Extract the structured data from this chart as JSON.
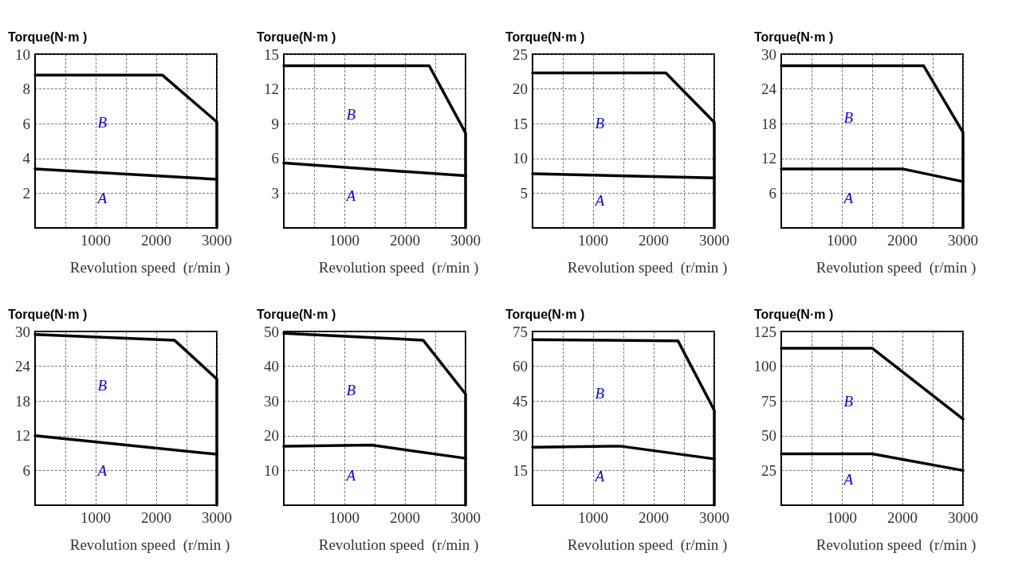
{
  "chart_data": [
    {
      "type": "line",
      "ylabel": "Torque(N·m )",
      "xlabel": "Revolution speed  (r/min )",
      "xlim": [
        0,
        3000
      ],
      "xticks": [
        {
          "value": 500,
          "label": null
        },
        1000,
        {
          "value": 1500,
          "label": null
        },
        2000,
        {
          "value": 2500,
          "label": null
        },
        3000
      ],
      "ylim": [
        0,
        10
      ],
      "yticks": [
        2,
        4,
        6,
        8,
        10
      ],
      "grid": true,
      "marker": "none",
      "line_style": "solid",
      "series": [
        {
          "color": "#000000",
          "x": [
            0,
            2100,
            3000,
            3000
          ],
          "values": [
            8.8,
            8.8,
            6.1,
            0
          ]
        },
        {
          "color": "#000000",
          "x": [
            0,
            3000
          ],
          "values": [
            3.4,
            2.8
          ]
        }
      ],
      "annotations": [
        "B",
        "A"
      ]
    },
    {
      "type": "line",
      "ylabel": "Torque(N·m )",
      "xlabel": "Revolution speed  (r/min )",
      "xlim": [
        0,
        3000
      ],
      "xticks": [
        {
          "value": 500,
          "label": null
        },
        1000,
        {
          "value": 1500,
          "label": null
        },
        2000,
        {
          "value": 2500,
          "label": null
        },
        3000
      ],
      "ylim": [
        0,
        15
      ],
      "yticks": [
        3,
        6,
        9,
        12,
        15
      ],
      "grid": true,
      "marker": "none",
      "line_style": "solid",
      "series": [
        {
          "color": "#000000",
          "x": [
            0,
            2400,
            3000,
            3000
          ],
          "values": [
            14,
            14,
            8.2,
            0
          ]
        },
        {
          "color": "#000000",
          "x": [
            0,
            3000
          ],
          "values": [
            5.6,
            4.5
          ]
        }
      ],
      "annotations": [
        "B",
        "A"
      ]
    },
    {
      "type": "line",
      "ylabel": "Torque(N·m )",
      "xlabel": "Revolution speed  (r/min )",
      "xlim": [
        0,
        3000
      ],
      "xticks": [
        {
          "value": 500,
          "label": null
        },
        1000,
        {
          "value": 1500,
          "label": null
        },
        2000,
        {
          "value": 2500,
          "label": null
        },
        3000
      ],
      "ylim": [
        0,
        25
      ],
      "yticks": [
        5,
        10,
        15,
        20,
        25
      ],
      "grid": true,
      "marker": "none",
      "line_style": "solid",
      "series": [
        {
          "color": "#000000",
          "x": [
            0,
            2200,
            3000,
            3000
          ],
          "values": [
            22.3,
            22.3,
            15.2,
            0
          ]
        },
        {
          "color": "#000000",
          "x": [
            0,
            3000
          ],
          "values": [
            7.8,
            7.2
          ]
        }
      ],
      "annotations": [
        "B",
        "A"
      ]
    },
    {
      "type": "line",
      "ylabel": "Torque(N·m )",
      "xlabel": "Revolution speed  (r/min )",
      "xlim": [
        0,
        3000
      ],
      "xticks": [
        {
          "value": 500,
          "label": null
        },
        1000,
        {
          "value": 1500,
          "label": null
        },
        2000,
        {
          "value": 2500,
          "label": null
        },
        3000
      ],
      "ylim": [
        0,
        30
      ],
      "yticks": [
        6,
        12,
        18,
        24,
        30
      ],
      "grid": true,
      "marker": "none",
      "line_style": "solid",
      "series": [
        {
          "color": "#000000",
          "x": [
            0,
            2350,
            3000,
            3000
          ],
          "values": [
            28,
            28,
            16.5,
            0
          ]
        },
        {
          "color": "#000000",
          "x": [
            0,
            2000,
            3000
          ],
          "values": [
            10.2,
            10.2,
            8
          ]
        }
      ],
      "annotations": [
        "B",
        "A"
      ]
    },
    {
      "type": "line",
      "ylabel": "Torque(N·m )",
      "xlabel": "Revolution speed  (r/min )",
      "xlim": [
        0,
        3000
      ],
      "xticks": [
        {
          "value": 500,
          "label": null
        },
        1000,
        {
          "value": 1500,
          "label": null
        },
        2000,
        {
          "value": 2500,
          "label": null
        },
        3000
      ],
      "ylim": [
        0,
        30
      ],
      "yticks": [
        6,
        12,
        18,
        24,
        30
      ],
      "grid": true,
      "marker": "none",
      "line_style": "solid",
      "series": [
        {
          "color": "#000000",
          "x": [
            0,
            2300,
            3000,
            3000
          ],
          "values": [
            29.5,
            28.5,
            21.8,
            0
          ]
        },
        {
          "color": "#000000",
          "x": [
            0,
            3000
          ],
          "values": [
            12,
            8.8
          ]
        }
      ],
      "annotations": [
        "B",
        "A"
      ]
    },
    {
      "type": "line",
      "ylabel": "Torque(N·m )",
      "xlabel": "Revolution speed  (r/min )",
      "xlim": [
        0,
        3000
      ],
      "xticks": [
        {
          "value": 500,
          "label": null
        },
        1000,
        {
          "value": 1500,
          "label": null
        },
        2000,
        {
          "value": 2500,
          "label": null
        },
        3000
      ],
      "ylim": [
        0,
        50
      ],
      "yticks": [
        10,
        20,
        30,
        40,
        50
      ],
      "grid": true,
      "marker": "none",
      "line_style": "solid",
      "series": [
        {
          "color": "#000000",
          "x": [
            0,
            2300,
            3000,
            3000
          ],
          "values": [
            49.5,
            47.5,
            32,
            0
          ]
        },
        {
          "color": "#000000",
          "x": [
            0,
            1450,
            3000
          ],
          "values": [
            17,
            17.3,
            13.5
          ]
        }
      ],
      "annotations": [
        "B",
        "A"
      ]
    },
    {
      "type": "line",
      "ylabel": "Torque(N·m )",
      "xlabel": "Revolution speed  (r/min )",
      "xlim": [
        0,
        3000
      ],
      "xticks": [
        {
          "value": 500,
          "label": null
        },
        1000,
        {
          "value": 1500,
          "label": null
        },
        2000,
        {
          "value": 2500,
          "label": null
        },
        3000
      ],
      "ylim": [
        0,
        75
      ],
      "yticks": [
        15,
        30,
        45,
        60,
        75
      ],
      "grid": true,
      "marker": "none",
      "line_style": "solid",
      "series": [
        {
          "color": "#000000",
          "x": [
            0,
            2400,
            3000,
            3000
          ],
          "values": [
            71.5,
            71,
            41,
            0
          ]
        },
        {
          "color": "#000000",
          "x": [
            0,
            1450,
            3000
          ],
          "values": [
            25,
            25.5,
            20
          ]
        }
      ],
      "annotations": [
        "B",
        "A"
      ]
    },
    {
      "type": "line",
      "ylabel": "Torque(N·m )",
      "xlabel": "Revolution speed  (r/min )",
      "xlim": [
        0,
        3000
      ],
      "xticks": [
        {
          "value": 500,
          "label": null
        },
        1000,
        {
          "value": 1500,
          "label": null
        },
        2000,
        {
          "value": 2500,
          "label": null
        },
        3000
      ],
      "ylim": [
        0,
        125
      ],
      "yticks": [
        25,
        50,
        75,
        100,
        125
      ],
      "grid": true,
      "marker": "none",
      "line_style": "solid",
      "series": [
        {
          "color": "#000000",
          "x": [
            0,
            1500,
            3000
          ],
          "values": [
            113,
            113,
            62
          ]
        },
        {
          "color": "#000000",
          "x": [
            0,
            1500,
            3000
          ],
          "values": [
            37,
            37,
            25
          ]
        }
      ],
      "annotations": [
        "B",
        "A"
      ]
    }
  ]
}
